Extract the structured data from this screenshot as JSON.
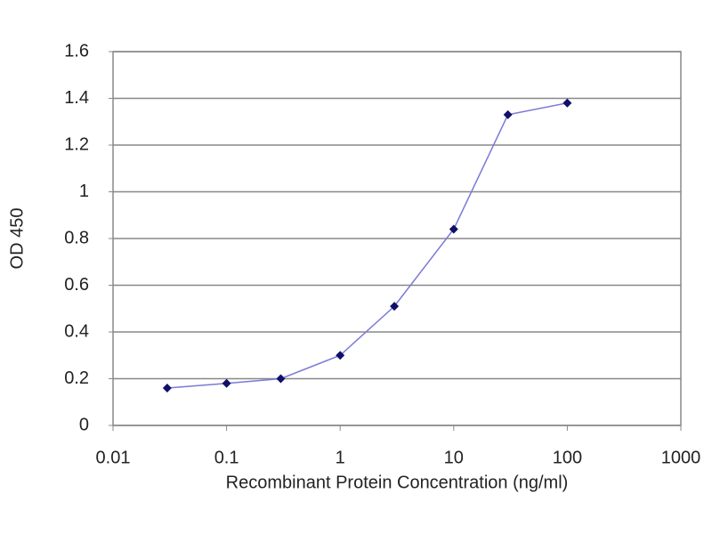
{
  "chart_data": {
    "type": "line",
    "x_label": "Recombinant Protein Concentration (ng/ml)",
    "y_label": "OD 450",
    "x": [
      0.03,
      0.1,
      0.3,
      1,
      3,
      10,
      30,
      100
    ],
    "values": [
      0.16,
      0.18,
      0.2,
      0.3,
      0.51,
      0.84,
      1.33,
      1.38
    ],
    "line_color": "#7a7ad8",
    "marker_color": "#10106a",
    "xlim": [
      0.01,
      1000
    ],
    "xticks": [
      0.01,
      0.1,
      1,
      10,
      100,
      1000
    ],
    "xscale": "log",
    "ylim": [
      0,
      1.6
    ],
    "yticks": [
      0,
      0.2,
      0.4,
      0.6,
      0.8,
      1,
      1.2,
      1.4,
      1.6
    ],
    "grid": true
  }
}
